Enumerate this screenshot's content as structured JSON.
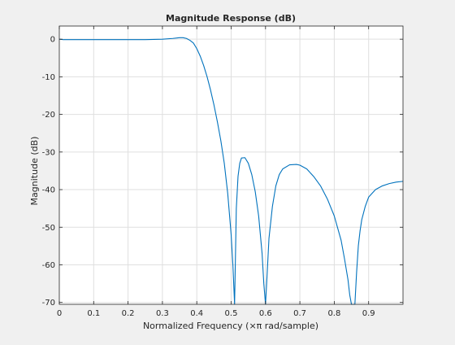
{
  "figure": {
    "background": "#f0f0f0"
  },
  "chart_data": {
    "type": "line",
    "title": "Magnitude Response (dB)",
    "xlabel": "Normalized Frequency (×π rad/sample)",
    "ylabel": "Magnitude (dB)",
    "xlim": [
      0,
      1
    ],
    "ylim": [
      -70.5,
      3.5
    ],
    "xticks": [
      0,
      0.1,
      0.2,
      0.3,
      0.4,
      0.5,
      0.6,
      0.7,
      0.8,
      0.9
    ],
    "xtick_labels": [
      "0",
      "0.1",
      "0.2",
      "0.3",
      "0.4",
      "0.5",
      "0.6",
      "0.7",
      "0.8",
      "0.9"
    ],
    "yticks": [
      0,
      -10,
      -20,
      -30,
      -40,
      -50,
      -60,
      -70
    ],
    "ytick_labels": [
      "0",
      "-10",
      "-20",
      "-30",
      "-40",
      "-50",
      "-60",
      "-70"
    ],
    "grid": true,
    "colors": {
      "line": "#0072bd",
      "axes_bg": "#ffffff",
      "grid": "#dfdfdf",
      "axis": "#262626"
    },
    "series": [
      {
        "x": [
          0,
          0.01,
          0.05,
          0.1,
          0.15,
          0.2,
          0.25,
          0.3,
          0.33,
          0.35,
          0.36,
          0.37,
          0.38,
          0.39,
          0.4,
          0.41,
          0.42,
          0.43,
          0.44,
          0.45,
          0.46,
          0.47,
          0.48,
          0.49,
          0.5,
          0.505,
          0.51,
          0.515,
          0.52,
          0.525,
          0.53,
          0.54,
          0.55,
          0.56,
          0.57,
          0.58,
          0.59,
          0.595,
          0.6,
          0.605,
          0.61,
          0.62,
          0.63,
          0.64,
          0.65,
          0.67,
          0.69,
          0.7,
          0.72,
          0.74,
          0.76,
          0.78,
          0.8,
          0.82,
          0.83,
          0.84,
          0.845,
          0.85,
          0.855,
          0.86,
          0.865,
          0.87,
          0.875,
          0.88,
          0.89,
          0.9,
          0.92,
          0.94,
          0.96,
          0.98,
          1.0
        ],
        "y": [
          0,
          -0.1,
          -0.1,
          -0.1,
          -0.1,
          -0.1,
          -0.1,
          0,
          0.2,
          0.4,
          0.4,
          0.2,
          -0.3,
          -1.0,
          -2.5,
          -4.5,
          -7.0,
          -10.0,
          -13.5,
          -17.5,
          -22.0,
          -27.0,
          -33.0,
          -41.0,
          -52.0,
          -60.0,
          -70.5,
          -45.0,
          -36.5,
          -33.0,
          -31.6,
          -31.5,
          -33.0,
          -36.0,
          -40.5,
          -47.0,
          -57.0,
          -65.0,
          -70.5,
          -62.0,
          -53.0,
          -44.5,
          -39.0,
          -36.0,
          -34.5,
          -33.4,
          -33.3,
          -33.5,
          -34.5,
          -36.5,
          -39.0,
          -42.5,
          -47.0,
          -53.5,
          -58.5,
          -64.0,
          -68.0,
          -70.5,
          -70.5,
          -70.5,
          -62.0,
          -55.0,
          -51.0,
          -48.0,
          -44.5,
          -42.0,
          -40.0,
          -39.0,
          -38.4,
          -38.0,
          -37.8
        ]
      }
    ]
  }
}
